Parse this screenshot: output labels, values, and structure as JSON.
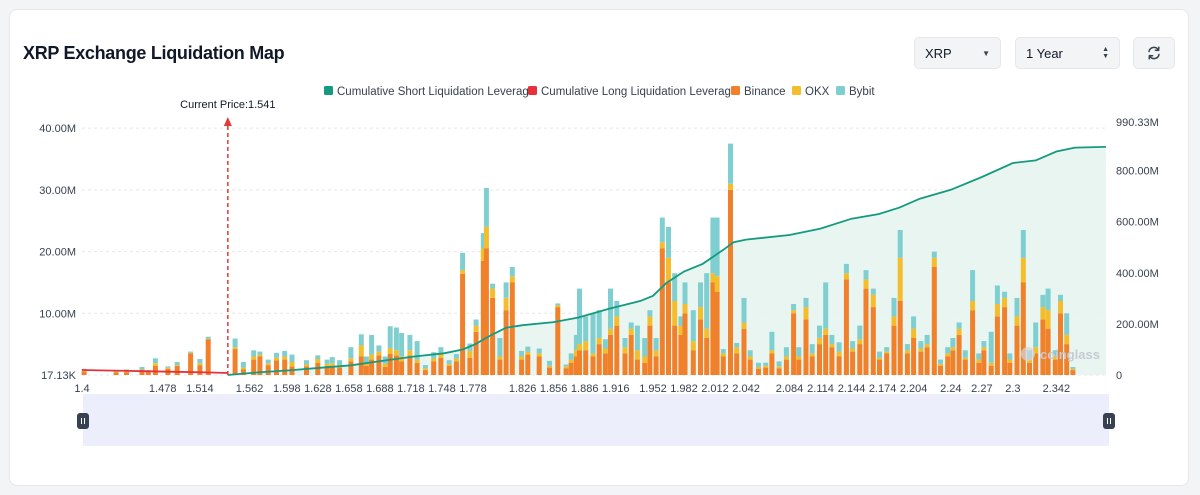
{
  "header": {
    "title": "XRP Exchange Liquidation Map",
    "coin_select": "XRP",
    "range_select": "1 Year",
    "refresh_icon": "refresh-icon"
  },
  "colors": {
    "short": "#159a7f",
    "long": "#e5323a",
    "binance": "#f0802a",
    "okx": "#f3bd2b",
    "bybit": "#7fcfd1",
    "area": "#e7f4ef",
    "grid": "#e5e7eb",
    "price": "#e53935",
    "navigator": "#eceefb"
  },
  "chart_data": {
    "type": "bar",
    "title": "XRP Exchange Liquidation Map",
    "current_price_label": "Current Price:1.541",
    "current_price": 1.541,
    "x_range": [
      1.4,
      2.39
    ],
    "x_ticks": [
      "1.4",
      "1.478",
      "1.514",
      "1.562",
      "1.598",
      "1.628",
      "1.658",
      "1.688",
      "1.718",
      "1.748",
      "1.778",
      "1.826",
      "1.856",
      "1.886",
      "1.916",
      "1.952",
      "1.982",
      "2.012",
      "2.042",
      "2.084",
      "2.114",
      "2.144",
      "2.174",
      "2.204",
      "2.24",
      "2.27",
      "2.3",
      "2.342"
    ],
    "x_tick_values": [
      1.4,
      1.478,
      1.514,
      1.562,
      1.598,
      1.628,
      1.658,
      1.688,
      1.718,
      1.748,
      1.778,
      1.826,
      1.856,
      1.886,
      1.916,
      1.952,
      1.982,
      2.012,
      2.042,
      2.084,
      2.114,
      2.144,
      2.174,
      2.204,
      2.24,
      2.27,
      2.3,
      2.342
    ],
    "y_left": {
      "ticks": [
        "17.13K",
        "10.00M",
        "20.00M",
        "30.00M",
        "40.00M"
      ],
      "values": [
        0,
        10,
        20,
        30,
        40
      ],
      "max": 41,
      "unit": "M"
    },
    "y_right": {
      "ticks": [
        "0",
        "200.00M",
        "400.00M",
        "600.00M",
        "800.00M",
        "990.33M"
      ],
      "values": [
        0,
        200,
        400,
        600,
        800,
        990.33
      ],
      "max": 990.33,
      "unit": "M"
    },
    "legend": [
      {
        "name": "Cumulative Short Liquidation Leverage",
        "color": "#159a7f"
      },
      {
        "name": "Cumulative Long Liquidation Leverage",
        "color": "#e5323a"
      },
      {
        "name": "Binance",
        "color": "#f0802a"
      },
      {
        "name": "OKX",
        "color": "#f3bd2b"
      },
      {
        "name": "Bybit",
        "color": "#7fcfd1"
      }
    ],
    "series_order": [
      "binance",
      "okx",
      "bybit"
    ],
    "bars": [
      {
        "x": 1.402,
        "binance": 0.6,
        "okx": 0.1,
        "bybit": 0.3
      },
      {
        "x": 1.433,
        "binance": 0.4,
        "okx": 0.1,
        "bybit": 0.2
      },
      {
        "x": 1.443,
        "binance": 0.4,
        "okx": 0.2,
        "bybit": 0.3
      },
      {
        "x": 1.458,
        "binance": 0.8,
        "okx": 0.1,
        "bybit": 0.4
      },
      {
        "x": 1.464,
        "binance": 0.6,
        "okx": 0.1,
        "bybit": 0.1
      },
      {
        "x": 1.471,
        "binance": 1.5,
        "okx": 0.4,
        "bybit": 0.8
      },
      {
        "x": 1.483,
        "binance": 1.0,
        "okx": 0.2,
        "bybit": 0.2
      },
      {
        "x": 1.492,
        "binance": 1.5,
        "okx": 0.1,
        "bybit": 0.5
      },
      {
        "x": 1.505,
        "binance": 3.5,
        "okx": 0.1,
        "bybit": 0.2
      },
      {
        "x": 1.514,
        "binance": 1.6,
        "okx": 0.3,
        "bybit": 0.7
      },
      {
        "x": 1.522,
        "binance": 5.8,
        "okx": 0.1,
        "bybit": 0.3
      },
      {
        "x": 1.548,
        "binance": 4.2,
        "okx": 0.3,
        "bybit": 1.4
      },
      {
        "x": 1.556,
        "binance": 0.9,
        "okx": 0.3,
        "bybit": 0.9
      },
      {
        "x": 1.566,
        "binance": 2.5,
        "okx": 0.5,
        "bybit": 1.0
      },
      {
        "x": 1.572,
        "binance": 3.0,
        "okx": 0.3,
        "bybit": 0.5
      },
      {
        "x": 1.58,
        "binance": 1.6,
        "okx": 0.3,
        "bybit": 0.6
      },
      {
        "x": 1.588,
        "binance": 2.4,
        "okx": 0.4,
        "bybit": 0.8
      },
      {
        "x": 1.596,
        "binance": 2.5,
        "okx": 0.5,
        "bybit": 0.9
      },
      {
        "x": 1.603,
        "binance": 1.4,
        "okx": 0.7,
        "bybit": 1.2
      },
      {
        "x": 1.617,
        "binance": 1.4,
        "okx": 0.3,
        "bybit": 0.7
      },
      {
        "x": 1.628,
        "binance": 2.0,
        "okx": 0.6,
        "bybit": 0.6
      },
      {
        "x": 1.637,
        "binance": 1.5,
        "okx": 0.3,
        "bybit": 0.7
      },
      {
        "x": 1.642,
        "binance": 1.5,
        "okx": 0.4,
        "bybit": 1.0
      },
      {
        "x": 1.649,
        "binance": 1.2,
        "okx": 0.4,
        "bybit": 0.8
      },
      {
        "x": 1.66,
        "binance": 2.2,
        "okx": 0.5,
        "bybit": 1.8
      },
      {
        "x": 1.67,
        "binance": 3.0,
        "okx": 1.8,
        "bybit": 1.8
      },
      {
        "x": 1.675,
        "binance": 1.5,
        "okx": 0.3,
        "bybit": 1.2
      },
      {
        "x": 1.68,
        "binance": 2.5,
        "okx": 0.8,
        "bybit": 3.2
      },
      {
        "x": 1.687,
        "binance": 3.2,
        "okx": 0.6,
        "bybit": 1.0
      },
      {
        "x": 1.693,
        "binance": 1.3,
        "okx": 0.5,
        "bybit": 1.2
      },
      {
        "x": 1.698,
        "binance": 3.4,
        "okx": 1.0,
        "bybit": 3.5
      },
      {
        "x": 1.704,
        "binance": 3.2,
        "okx": 0.8,
        "bybit": 3.7
      },
      {
        "x": 1.709,
        "binance": 2.2,
        "okx": 0.8,
        "bybit": 3.8
      },
      {
        "x": 1.717,
        "binance": 3.2,
        "okx": 0.8,
        "bybit": 2.5
      },
      {
        "x": 1.724,
        "binance": 2.0,
        "okx": 0.5,
        "bybit": 3.0
      },
      {
        "x": 1.732,
        "binance": 0.8,
        "okx": 0.3,
        "bybit": 0.5
      },
      {
        "x": 1.74,
        "binance": 2.2,
        "okx": 0.5,
        "bybit": 1.0
      },
      {
        "x": 1.747,
        "binance": 2.8,
        "okx": 0.6,
        "bybit": 1.1
      },
      {
        "x": 1.755,
        "binance": 1.5,
        "okx": 0.3,
        "bybit": 0.6
      },
      {
        "x": 1.762,
        "binance": 2.2,
        "okx": 0.5,
        "bybit": 0.7
      },
      {
        "x": 1.768,
        "binance": 16.4,
        "okx": 0.6,
        "bybit": 2.8
      },
      {
        "x": 1.775,
        "binance": 2.8,
        "okx": 1.1,
        "bybit": 1.2
      },
      {
        "x": 1.781,
        "binance": 7.0,
        "okx": 1.0,
        "bybit": 1.0
      },
      {
        "x": 1.788,
        "binance": 18.5,
        "okx": 2.0,
        "bybit": 2.5
      },
      {
        "x": 1.791,
        "binance": 20.5,
        "okx": 3.5,
        "bybit": 6.3
      },
      {
        "x": 1.797,
        "binance": 12.5,
        "okx": 1.5,
        "bybit": 0.8
      },
      {
        "x": 1.804,
        "binance": 2.5,
        "okx": 0.5,
        "bybit": 3.0
      },
      {
        "x": 1.81,
        "binance": 10.5,
        "okx": 2.0,
        "bybit": 2.5
      },
      {
        "x": 1.816,
        "binance": 15.0,
        "okx": 1.0,
        "bybit": 1.5
      },
      {
        "x": 1.825,
        "binance": 2.5,
        "okx": 0.5,
        "bybit": 0.9
      },
      {
        "x": 1.831,
        "binance": 3.3,
        "okx": 0.5,
        "bybit": 0.8
      },
      {
        "x": 1.842,
        "binance": 3.0,
        "okx": 0.5,
        "bybit": 0.8
      },
      {
        "x": 1.852,
        "binance": 1.2,
        "okx": 0.3,
        "bybit": 0.8
      },
      {
        "x": 1.86,
        "binance": 11.0,
        "okx": 0.3,
        "bybit": 0.3
      },
      {
        "x": 1.868,
        "binance": 1.1,
        "okx": 0.3,
        "bybit": 0.3
      },
      {
        "x": 1.873,
        "binance": 2.0,
        "okx": 0.5,
        "bybit": 1.0
      },
      {
        "x": 1.878,
        "binance": 3.0,
        "okx": 1.0,
        "bybit": 2.5
      },
      {
        "x": 1.881,
        "binance": 4.0,
        "okx": 1.0,
        "bybit": 9.0
      },
      {
        "x": 1.887,
        "binance": 4.0,
        "okx": 1.5,
        "bybit": 4.0
      },
      {
        "x": 1.894,
        "binance": 3.0,
        "okx": 0.5,
        "bybit": 6.5
      },
      {
        "x": 1.9,
        "binance": 5.0,
        "okx": 1.0,
        "bybit": 4.5
      },
      {
        "x": 1.906,
        "binance": 3.5,
        "okx": 0.8,
        "bybit": 1.5
      },
      {
        "x": 1.911,
        "binance": 6.5,
        "okx": 1.0,
        "bybit": 6.5
      },
      {
        "x": 1.917,
        "binance": 8.0,
        "okx": 1.5,
        "bybit": 2.5
      },
      {
        "x": 1.925,
        "binance": 3.5,
        "okx": 1.0,
        "bybit": 1.5
      },
      {
        "x": 1.931,
        "binance": 6.5,
        "okx": 1.0,
        "bybit": 1.0
      },
      {
        "x": 1.937,
        "binance": 2.5,
        "okx": 1.5,
        "bybit": 4.0
      },
      {
        "x": 1.944,
        "binance": 2.0,
        "okx": 1.0,
        "bybit": 3.0
      },
      {
        "x": 1.949,
        "binance": 8.0,
        "okx": 1.5,
        "bybit": 1.0
      },
      {
        "x": 1.955,
        "binance": 3.0,
        "okx": 1.0,
        "bybit": 2.0
      },
      {
        "x": 1.961,
        "binance": 20.5,
        "okx": 1.0,
        "bybit": 4.0
      },
      {
        "x": 1.967,
        "binance": 15.0,
        "okx": 4.0,
        "bybit": 5.0
      },
      {
        "x": 1.973,
        "binance": 8.0,
        "okx": 4.0,
        "bybit": 4.5
      },
      {
        "x": 1.979,
        "binance": 6.5,
        "okx": 1.5,
        "bybit": 1.5
      },
      {
        "x": 1.983,
        "binance": 10.0,
        "okx": 1.5,
        "bybit": 3.5
      },
      {
        "x": 1.991,
        "binance": 4.0,
        "okx": 1.5,
        "bybit": 5.0
      },
      {
        "x": 1.998,
        "binance": 9.0,
        "okx": 2.0,
        "bybit": 4.0
      },
      {
        "x": 2.004,
        "binance": 6.0,
        "okx": 1.5,
        "bybit": 9.0
      },
      {
        "x": 2.01,
        "binance": 15.0,
        "okx": 1.5,
        "bybit": 9.0
      },
      {
        "x": 2.014,
        "binance": 13.5,
        "okx": 2.5,
        "bybit": 9.5
      },
      {
        "x": 2.02,
        "binance": 3.0,
        "okx": 0.5,
        "bybit": 0.7
      },
      {
        "x": 2.027,
        "binance": 30.0,
        "okx": 1.0,
        "bybit": 6.5
      },
      {
        "x": 2.033,
        "binance": 3.5,
        "okx": 1.0,
        "bybit": 0.7
      },
      {
        "x": 2.04,
        "binance": 7.5,
        "okx": 1.0,
        "bybit": 4.0
      },
      {
        "x": 2.046,
        "binance": 2.5,
        "okx": 0.5,
        "bybit": 1.0
      },
      {
        "x": 2.054,
        "binance": 1.0,
        "okx": 0.3,
        "bybit": 0.7
      },
      {
        "x": 2.061,
        "binance": 1.2,
        "okx": 0.3,
        "bybit": 0.5
      },
      {
        "x": 2.067,
        "binance": 3.5,
        "okx": 0.5,
        "bybit": 3.0
      },
      {
        "x": 2.074,
        "binance": 1.1,
        "okx": 0.3,
        "bybit": 0.8
      },
      {
        "x": 2.081,
        "binance": 2.5,
        "okx": 0.5,
        "bybit": 1.5
      },
      {
        "x": 2.088,
        "binance": 10.0,
        "okx": 0.5,
        "bybit": 1.0
      },
      {
        "x": 2.093,
        "binance": 2.5,
        "okx": 0.5,
        "bybit": 1.5
      },
      {
        "x": 2.1,
        "binance": 9.0,
        "okx": 2.0,
        "bybit": 1.5
      },
      {
        "x": 2.106,
        "binance": 3.0,
        "okx": 0.5,
        "bybit": 1.5
      },
      {
        "x": 2.113,
        "binance": 5.0,
        "okx": 1.0,
        "bybit": 2.0
      },
      {
        "x": 2.119,
        "binance": 6.5,
        "okx": 1.0,
        "bybit": 7.5
      },
      {
        "x": 2.125,
        "binance": 4.5,
        "okx": 0.5,
        "bybit": 1.5
      },
      {
        "x": 2.132,
        "binance": 3.0,
        "okx": 0.8,
        "bybit": 1.5
      },
      {
        "x": 2.139,
        "binance": 15.5,
        "okx": 1.0,
        "bybit": 1.5
      },
      {
        "x": 2.145,
        "binance": 3.8,
        "okx": 0.5,
        "bybit": 1.2
      },
      {
        "x": 2.152,
        "binance": 5.0,
        "okx": 0.8,
        "bybit": 2.2
      },
      {
        "x": 2.158,
        "binance": 14.0,
        "okx": 1.5,
        "bybit": 1.5
      },
      {
        "x": 2.165,
        "binance": 11.0,
        "okx": 2.0,
        "bybit": 1.0
      },
      {
        "x": 2.171,
        "binance": 2.5,
        "okx": 0.3,
        "bybit": 1.0
      },
      {
        "x": 2.178,
        "binance": 3.5,
        "okx": 0.3,
        "bybit": 0.7
      },
      {
        "x": 2.185,
        "binance": 8.0,
        "okx": 1.5,
        "bybit": 3.0
      },
      {
        "x": 2.191,
        "binance": 12.0,
        "okx": 7.0,
        "bybit": 4.5
      },
      {
        "x": 2.198,
        "binance": 3.5,
        "okx": 0.5,
        "bybit": 1.0
      },
      {
        "x": 2.204,
        "binance": 6.0,
        "okx": 1.5,
        "bybit": 2.0
      },
      {
        "x": 2.211,
        "binance": 3.8,
        "okx": 0.5,
        "bybit": 1.2
      },
      {
        "x": 2.217,
        "binance": 4.5,
        "okx": 0.5,
        "bybit": 1.5
      },
      {
        "x": 2.224,
        "binance": 17.5,
        "okx": 1.5,
        "bybit": 1.0
      },
      {
        "x": 2.23,
        "binance": 1.5,
        "okx": 0.3,
        "bybit": 0.7
      },
      {
        "x": 2.237,
        "binance": 3.0,
        "okx": 0.5,
        "bybit": 1.0
      },
      {
        "x": 2.242,
        "binance": 4.0,
        "okx": 0.5,
        "bybit": 1.5
      },
      {
        "x": 2.248,
        "binance": 6.5,
        "okx": 1.0,
        "bybit": 1.0
      },
      {
        "x": 2.254,
        "binance": 2.5,
        "okx": 0.3,
        "bybit": 1.2
      },
      {
        "x": 2.261,
        "binance": 10.5,
        "okx": 1.5,
        "bybit": 5.0
      },
      {
        "x": 2.267,
        "binance": 2.0,
        "okx": 0.5,
        "bybit": 1.0
      },
      {
        "x": 2.272,
        "binance": 4.0,
        "okx": 0.5,
        "bybit": 1.0
      },
      {
        "x": 2.279,
        "binance": 1.5,
        "okx": 0.5,
        "bybit": 5.0
      },
      {
        "x": 2.285,
        "binance": 9.5,
        "okx": 2.0,
        "bybit": 3.0
      },
      {
        "x": 2.292,
        "binance": 11.0,
        "okx": 1.5,
        "bybit": 1.0
      },
      {
        "x": 2.297,
        "binance": 2.0,
        "okx": 0.5,
        "bybit": 1.0
      },
      {
        "x": 2.304,
        "binance": 8.0,
        "okx": 1.5,
        "bybit": 3.0
      },
      {
        "x": 2.31,
        "binance": 15.0,
        "okx": 4.0,
        "bybit": 4.5
      },
      {
        "x": 2.316,
        "binance": 2.0,
        "okx": 0.5,
        "bybit": 1.5
      },
      {
        "x": 2.322,
        "binance": 3.5,
        "okx": 1.0,
        "bybit": 4.0
      },
      {
        "x": 2.329,
        "binance": 9.0,
        "okx": 2.0,
        "bybit": 2.0
      },
      {
        "x": 2.334,
        "binance": 7.5,
        "okx": 3.0,
        "bybit": 3.5
      },
      {
        "x": 2.341,
        "binance": 2.5,
        "okx": 0.5,
        "bybit": 1.0
      },
      {
        "x": 2.346,
        "binance": 10.0,
        "okx": 2.0,
        "bybit": 1.0
      },
      {
        "x": 2.352,
        "binance": 5.0,
        "okx": 1.5,
        "bybit": 3.5
      },
      {
        "x": 2.358,
        "binance": 0.8,
        "okx": 0.2,
        "bybit": 0.3
      }
    ],
    "cumulative_long": [
      [
        1.4,
        0.015
      ],
      [
        1.43,
        0.012
      ],
      [
        1.46,
        0.009
      ],
      [
        1.49,
        0.006
      ],
      [
        1.52,
        0.003
      ],
      [
        1.541,
        0
      ]
    ],
    "cumulative_short": [
      [
        1.541,
        0
      ],
      [
        1.57,
        10
      ],
      [
        1.6,
        18
      ],
      [
        1.63,
        28
      ],
      [
        1.66,
        38
      ],
      [
        1.69,
        55
      ],
      [
        1.72,
        72
      ],
      [
        1.75,
        85
      ],
      [
        1.768,
        100
      ],
      [
        1.78,
        120
      ],
      [
        1.795,
        155
      ],
      [
        1.81,
        185
      ],
      [
        1.826,
        195
      ],
      [
        1.856,
        207
      ],
      [
        1.88,
        225
      ],
      [
        1.91,
        260
      ],
      [
        1.94,
        290
      ],
      [
        1.952,
        310
      ],
      [
        1.965,
        360
      ],
      [
        1.982,
        405
      ],
      [
        2.0,
        435
      ],
      [
        2.02,
        490
      ],
      [
        2.03,
        520
      ],
      [
        2.042,
        530
      ],
      [
        2.084,
        548
      ],
      [
        2.114,
        573
      ],
      [
        2.144,
        612
      ],
      [
        2.17,
        630
      ],
      [
        2.19,
        655
      ],
      [
        2.21,
        690
      ],
      [
        2.24,
        725
      ],
      [
        2.27,
        775
      ],
      [
        2.3,
        830
      ],
      [
        2.322,
        840
      ],
      [
        2.342,
        875
      ],
      [
        2.36,
        890
      ],
      [
        2.39,
        893
      ]
    ]
  },
  "watermark": "coinglass"
}
